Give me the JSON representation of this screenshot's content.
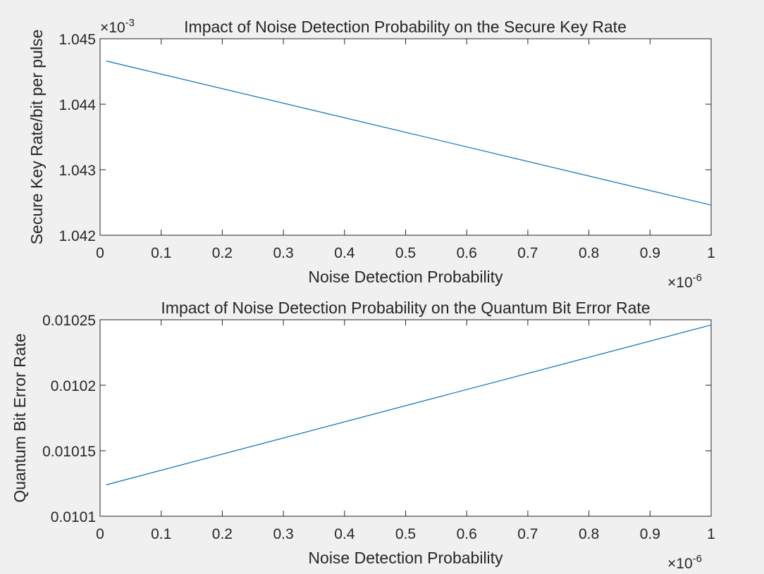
{
  "chart_data": [
    {
      "type": "line",
      "title": "Impact of Noise Detection Probability on the Secure Key Rate",
      "xlabel": "Noise Detection Probability",
      "ylabel": "Secure Key Rate/bit per pulse",
      "xlim": [
        0,
        1
      ],
      "ylim": [
        1.042,
        1.045
      ],
      "x_ticks": [
        "0",
        "0.1",
        "0.2",
        "0.3",
        "0.4",
        "0.5",
        "0.6",
        "0.7",
        "0.8",
        "0.9",
        "1"
      ],
      "y_ticks": [
        "1.042",
        "1.043",
        "1.044",
        "1.045"
      ],
      "x_exponent": "×10",
      "x_exponent_power": "-6",
      "y_exponent": "×10",
      "y_exponent_power": "-3",
      "grid": false,
      "line_color": "#0072bd",
      "series": [
        {
          "x": [
            0.01,
            1.0
          ],
          "y": [
            1.04466,
            1.04246
          ]
        }
      ]
    },
    {
      "type": "line",
      "title": "Impact of Noise Detection Probability on the Quantum Bit Error Rate",
      "xlabel": "Noise Detection Probability",
      "ylabel": "Quantum Bit Error Rate",
      "xlim": [
        0,
        1
      ],
      "ylim": [
        0.0101,
        0.01025
      ],
      "x_ticks": [
        "0",
        "0.1",
        "0.2",
        "0.3",
        "0.4",
        "0.5",
        "0.6",
        "0.7",
        "0.8",
        "0.9",
        "1"
      ],
      "y_ticks": [
        "0.0101",
        "0.01015",
        "0.0102",
        "0.01025"
      ],
      "x_exponent": "×10",
      "x_exponent_power": "-6",
      "y_exponent": "",
      "y_exponent_power": "",
      "grid": false,
      "line_color": "#0072bd",
      "series": [
        {
          "x": [
            0.01,
            1.0
          ],
          "y": [
            0.010124,
            0.010246
          ]
        }
      ]
    }
  ]
}
